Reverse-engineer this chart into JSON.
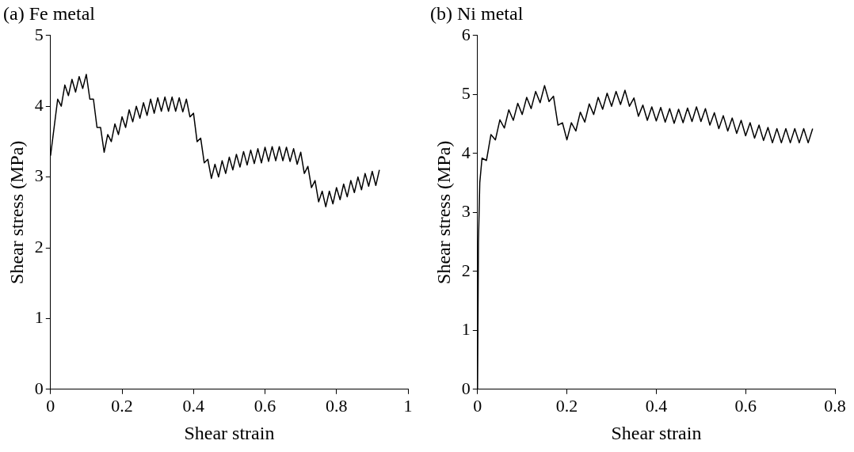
{
  "chart_data": [
    {
      "type": "line",
      "title": "(a) Fe metal",
      "xlabel": "Shear strain",
      "ylabel": "Shear stress (MPa)",
      "xlim": [
        0,
        1
      ],
      "xticks": [
        0,
        0.2,
        0.4,
        0.6,
        0.8,
        1
      ],
      "ylim": [
        0,
        5
      ],
      "yticks": [
        0,
        1,
        2,
        3,
        4,
        5
      ],
      "grid": false,
      "legend": false,
      "marker": "none",
      "series": [
        {
          "color": "#000000",
          "x": [
            0,
            0.01,
            0.02,
            0.03,
            0.04,
            0.05,
            0.06,
            0.07,
            0.08,
            0.09,
            0.1,
            0.11,
            0.12,
            0.13,
            0.14,
            0.15,
            0.16,
            0.17,
            0.18,
            0.19,
            0.2,
            0.21,
            0.22,
            0.23,
            0.24,
            0.25,
            0.26,
            0.27,
            0.28,
            0.29,
            0.3,
            0.31,
            0.32,
            0.33,
            0.34,
            0.35,
            0.36,
            0.37,
            0.38,
            0.39,
            0.4,
            0.41,
            0.42,
            0.43,
            0.44,
            0.45,
            0.46,
            0.47,
            0.48,
            0.49,
            0.5,
            0.51,
            0.52,
            0.53,
            0.54,
            0.55,
            0.56,
            0.57,
            0.58,
            0.59,
            0.6,
            0.61,
            0.62,
            0.63,
            0.64,
            0.65,
            0.66,
            0.67,
            0.68,
            0.69,
            0.7,
            0.71,
            0.72,
            0.73,
            0.74,
            0.75,
            0.76,
            0.77,
            0.78,
            0.79,
            0.8,
            0.81,
            0.82,
            0.83,
            0.84,
            0.85,
            0.86,
            0.87,
            0.88,
            0.89,
            0.9,
            0.91,
            0.92
          ],
          "values": [
            3.3,
            3.7,
            4.1,
            4.0,
            4.3,
            4.15,
            4.38,
            4.2,
            4.42,
            4.25,
            4.45,
            4.1,
            4.1,
            3.7,
            3.7,
            3.35,
            3.6,
            3.5,
            3.75,
            3.6,
            3.85,
            3.7,
            3.95,
            3.78,
            4.0,
            3.83,
            4.05,
            3.87,
            4.1,
            3.9,
            4.12,
            3.93,
            4.13,
            3.93,
            4.13,
            3.93,
            4.12,
            3.92,
            4.1,
            3.85,
            3.9,
            3.5,
            3.55,
            3.2,
            3.25,
            2.98,
            3.18,
            3.0,
            3.23,
            3.05,
            3.28,
            3.1,
            3.32,
            3.14,
            3.36,
            3.17,
            3.38,
            3.19,
            3.4,
            3.2,
            3.42,
            3.22,
            3.43,
            3.23,
            3.43,
            3.23,
            3.42,
            3.22,
            3.4,
            3.18,
            3.35,
            3.05,
            3.15,
            2.85,
            2.95,
            2.65,
            2.8,
            2.58,
            2.8,
            2.62,
            2.85,
            2.68,
            2.9,
            2.72,
            2.95,
            2.78,
            3.0,
            2.82,
            3.05,
            2.87,
            3.08,
            2.88,
            3.1
          ]
        }
      ]
    },
    {
      "type": "line",
      "title": "(b) Ni metal",
      "xlabel": "Shear strain",
      "ylabel": "Shear stress (MPa)",
      "xlim": [
        0,
        0.8
      ],
      "xticks": [
        0,
        0.2,
        0.4,
        0.6,
        0.8
      ],
      "ylim": [
        0,
        6
      ],
      "yticks": [
        0,
        1,
        2,
        3,
        4,
        5,
        6
      ],
      "grid": false,
      "legend": false,
      "marker": "none",
      "series": [
        {
          "color": "#000000",
          "x": [
            0,
            0.002,
            0.005,
            0.01,
            0.02,
            0.03,
            0.04,
            0.05,
            0.06,
            0.07,
            0.08,
            0.09,
            0.1,
            0.11,
            0.12,
            0.13,
            0.14,
            0.15,
            0.16,
            0.17,
            0.18,
            0.19,
            0.2,
            0.21,
            0.22,
            0.23,
            0.24,
            0.25,
            0.26,
            0.27,
            0.28,
            0.29,
            0.3,
            0.31,
            0.32,
            0.33,
            0.34,
            0.35,
            0.36,
            0.37,
            0.38,
            0.39,
            0.4,
            0.41,
            0.42,
            0.43,
            0.44,
            0.45,
            0.46,
            0.47,
            0.48,
            0.49,
            0.5,
            0.51,
            0.52,
            0.53,
            0.54,
            0.55,
            0.56,
            0.57,
            0.58,
            0.59,
            0.6,
            0.61,
            0.62,
            0.63,
            0.64,
            0.65,
            0.66,
            0.67,
            0.68,
            0.69,
            0.7,
            0.71,
            0.72,
            0.73,
            0.74,
            0.75
          ],
          "values": [
            0,
            2.5,
            3.5,
            3.92,
            3.88,
            4.32,
            4.23,
            4.57,
            4.43,
            4.74,
            4.56,
            4.85,
            4.66,
            4.95,
            4.76,
            5.05,
            4.86,
            5.15,
            4.88,
            4.97,
            4.48,
            4.52,
            4.23,
            4.52,
            4.38,
            4.7,
            4.53,
            4.84,
            4.66,
            4.95,
            4.75,
            5.02,
            4.8,
            5.05,
            4.83,
            5.07,
            4.8,
            4.94,
            4.63,
            4.82,
            4.56,
            4.79,
            4.55,
            4.78,
            4.53,
            4.76,
            4.51,
            4.75,
            4.52,
            4.77,
            4.54,
            4.79,
            4.54,
            4.76,
            4.48,
            4.69,
            4.42,
            4.64,
            4.38,
            4.6,
            4.34,
            4.56,
            4.3,
            4.52,
            4.26,
            4.48,
            4.22,
            4.44,
            4.18,
            4.42,
            4.18,
            4.42,
            4.18,
            4.42,
            4.18,
            4.42,
            4.18,
            4.42
          ]
        }
      ]
    }
  ]
}
